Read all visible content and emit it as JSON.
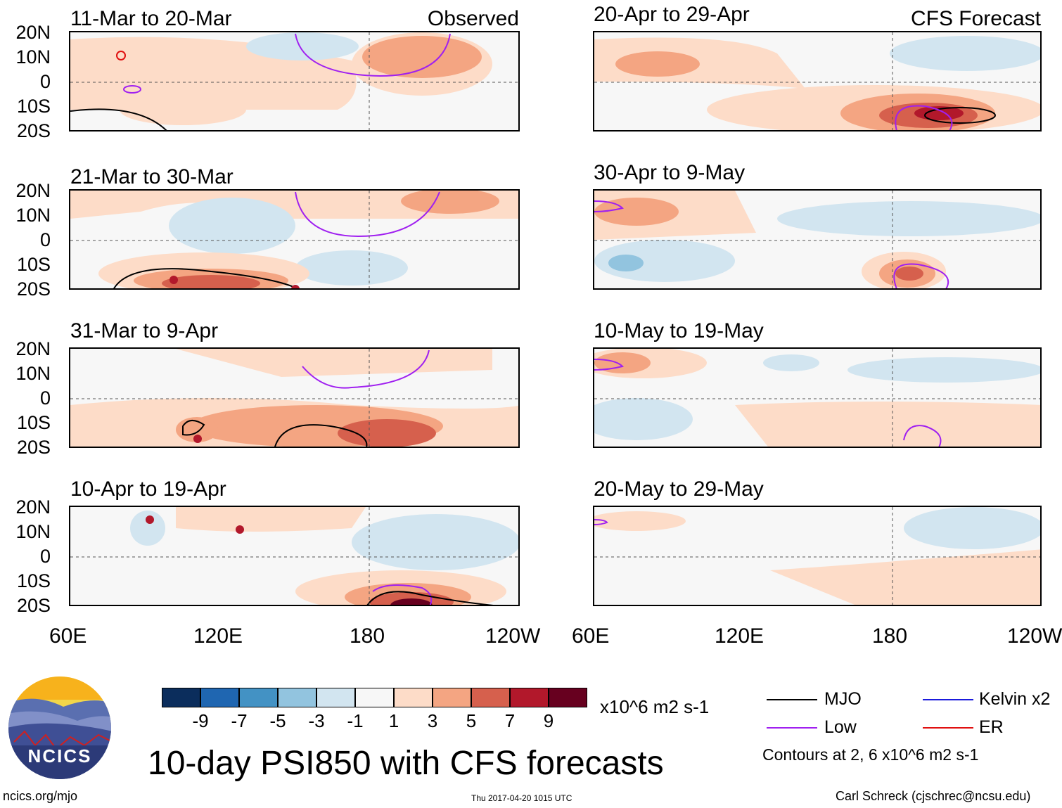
{
  "panels": [
    {
      "title": "11-Mar to 20-Mar",
      "tag": "Observed"
    },
    {
      "title": "20-Apr to 29-Apr",
      "tag": "CFS Forecast"
    },
    {
      "title": "21-Mar to 30-Mar"
    },
    {
      "title": "30-Apr to 9-May"
    },
    {
      "title": "31-Mar to 9-Apr"
    },
    {
      "title": "10-May to 19-May"
    },
    {
      "title": "10-Apr to 19-Apr"
    },
    {
      "title": "20-May to 29-May"
    }
  ],
  "lat_labels": [
    "20N",
    "10N",
    "0",
    "10S",
    "20S"
  ],
  "lon_labels": [
    "60E",
    "120E",
    "180",
    "120W"
  ],
  "colorbar": {
    "colors": [
      "#0b2d5c",
      "#1f66b1",
      "#4392c4",
      "#92c4df",
      "#d2e5f0",
      "#f7f7f7",
      "#fddcc8",
      "#f4a582",
      "#d6604d",
      "#b2182b",
      "#67001f"
    ],
    "ticks": [
      "-9",
      "-7",
      "-5",
      "-3",
      "-1",
      "1",
      "3",
      "5",
      "7",
      "9"
    ],
    "units": "x10^6 m2 s-1"
  },
  "legend": [
    {
      "label": "MJO",
      "color": "#000000"
    },
    {
      "label": "Kelvin x2",
      "color": "#1a1adc"
    },
    {
      "label": "Low",
      "color": "#a020f0"
    },
    {
      "label": "ER",
      "color": "#e01010"
    }
  ],
  "contours_note": "Contours at 2, 6 x10^6 m2 s-1",
  "main_title": "10-day PSI850 with CFS forecasts",
  "logo_text": "NCICS",
  "site": "ncics.org/mjo",
  "timestamp": "Thu 2017-04-20 1015 UTC",
  "author": "Carl Schreck (cjschrec@ncsu.edu)"
}
